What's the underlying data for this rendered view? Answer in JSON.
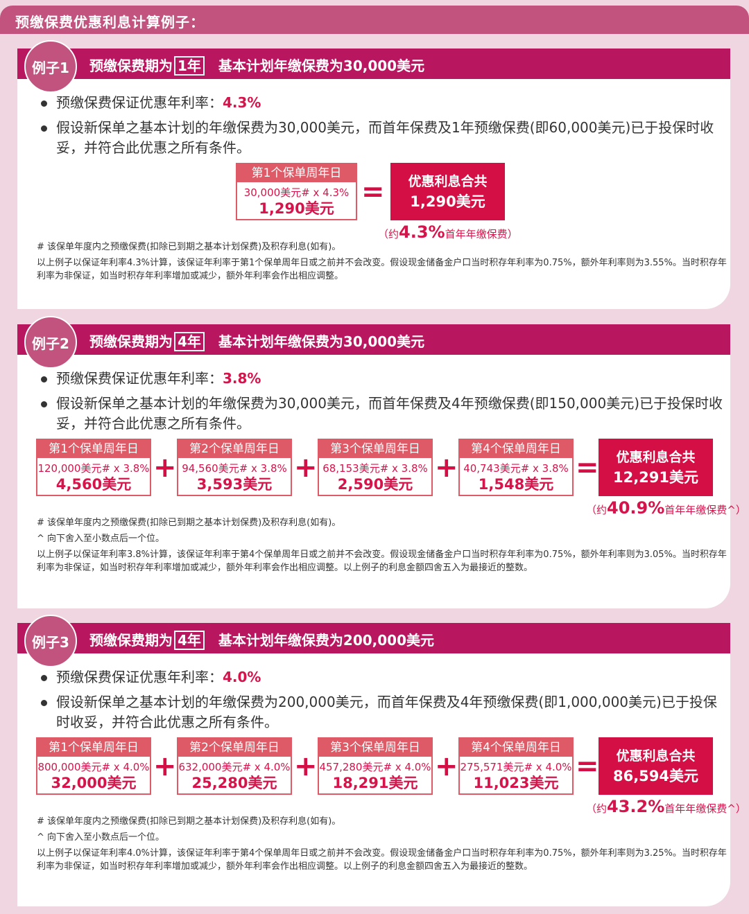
{
  "title": "预缴保费优惠利息计算例子：",
  "colors": {
    "header": "#c2527e",
    "banner": "#b8165f",
    "box": "#de5a66",
    "total": "#d40f45",
    "background": "#f0d6e0"
  },
  "examples": [
    {
      "badge": "例子1",
      "banner_pre": "预缴保费期为",
      "years": "1年",
      "banner_post": "基本计划年缴保费为30,000美元",
      "rate_label": "预缴保费保证优惠年利率：",
      "rate": "4.3%",
      "assumption": "假设新保单之基本计划的年缴保费为30,000美元，而首年保费及1年预缴保费(即60,000美元)已于投保时收妥，并符合此优惠之所有条件。",
      "boxes": [
        {
          "title": "第1个保单周年日",
          "formula": "30,000美元# x 4.3%",
          "value": "1,290美元"
        }
      ],
      "total_label": "优惠利息合共",
      "total_value": "1,290美元",
      "approx_pre": "（约",
      "approx_pct": "4.3%",
      "approx_post": "首年年缴保费）",
      "notes": [
        "#  该保单年度内之预缴保费(扣除已到期之基本计划保费)及积存利息(如有)。",
        "以上例子以保证年利率4.3%计算，该保证年利率于第1个保单周年日或之前并不会改变。假设现金储备金户口当时积存年利率为0.75%，额外年利率则为3.55%。当时积存年利率为非保证，如当时积存年利率增加或减少，额外年利率会作出相应调整。"
      ]
    },
    {
      "badge": "例子2",
      "banner_pre": "预缴保费期为",
      "years": "4年",
      "banner_post": "基本计划年缴保费为30,000美元",
      "rate_label": "预缴保费保证优惠年利率：",
      "rate": "3.8%",
      "assumption": "假设新保单之基本计划的年缴保费为30,000美元，而首年保费及4年预缴保费(即150,000美元)已于投保时收妥，并符合此优惠之所有条件。",
      "boxes": [
        {
          "title": "第1个保单周年日",
          "formula": "120,000美元# x 3.8%",
          "value": "4,560美元"
        },
        {
          "title": "第2个保单周年日",
          "formula": "94,560美元# x 3.8%",
          "value": "3,593美元"
        },
        {
          "title": "第3个保单周年日",
          "formula": "68,153美元# x 3.8%",
          "value": "2,590美元"
        },
        {
          "title": "第4个保单周年日",
          "formula": "40,743美元# x 3.8%",
          "value": "1,548美元"
        }
      ],
      "total_label": "优惠利息合共",
      "total_value": "12,291美元",
      "approx_pre": "（约",
      "approx_pct": "40.9%",
      "approx_post": "首年年缴保费^）",
      "notes": [
        "#  该保单年度内之预缴保费(扣除已到期之基本计划保费)及积存利息(如有)。",
        "^  向下舍入至小数点后一个位。",
        "以上例子以保证年利率3.8%计算，该保证年利率于第4个保单周年日或之前并不会改变。假设现金储备金户口当时积存年利率为0.75%，额外年利率则为3.05%。当时积存年利率为非保证，如当时积存年利率增加或减少，额外年利率会作出相应调整。以上例子的利息金额四舍五入为最接近的整数。"
      ]
    },
    {
      "badge": "例子3",
      "banner_pre": "预缴保费期为",
      "years": "4年",
      "banner_post": "基本计划年缴保费为200,000美元",
      "rate_label": "预缴保费保证优惠年利率：",
      "rate": "4.0%",
      "assumption": "假设新保单之基本计划的年缴保费为200,000美元，而首年保费及4年预缴保费(即1,000,000美元)已于投保时收妥，并符合此优惠之所有条件。",
      "boxes": [
        {
          "title": "第1个保单周年日",
          "formula": "800,000美元# x 4.0%",
          "value": "32,000美元"
        },
        {
          "title": "第2个保单周年日",
          "formula": "632,000美元# x 4.0%",
          "value": "25,280美元"
        },
        {
          "title": "第3个保单周年日",
          "formula": "457,280美元# x 4.0%",
          "value": "18,291美元"
        },
        {
          "title": "第4个保单周年日",
          "formula": "275,571美元# x 4.0%",
          "value": "11,023美元"
        }
      ],
      "total_label": "优惠利息合共",
      "total_value": "86,594美元",
      "approx_pre": "（约",
      "approx_pct": "43.2%",
      "approx_post": "首年年缴保费^）",
      "notes": [
        "#  该保单年度内之预缴保费(扣除已到期之基本计划保费)及积存利息(如有)。",
        "^  向下舍入至小数点后一个位。",
        "以上例子以保证年利率4.0%计算，该保证年利率于第4个保单周年日或之前并不会改变。假设现金储备金户口当时积存年利率为0.75%，额外年利率则为3.25%。当时积存年利率为非保证，如当时积存年利率增加或减少，额外年利率会作出相应调整。以上例子的利息金额四舍五入为最接近的整数。"
      ]
    }
  ]
}
